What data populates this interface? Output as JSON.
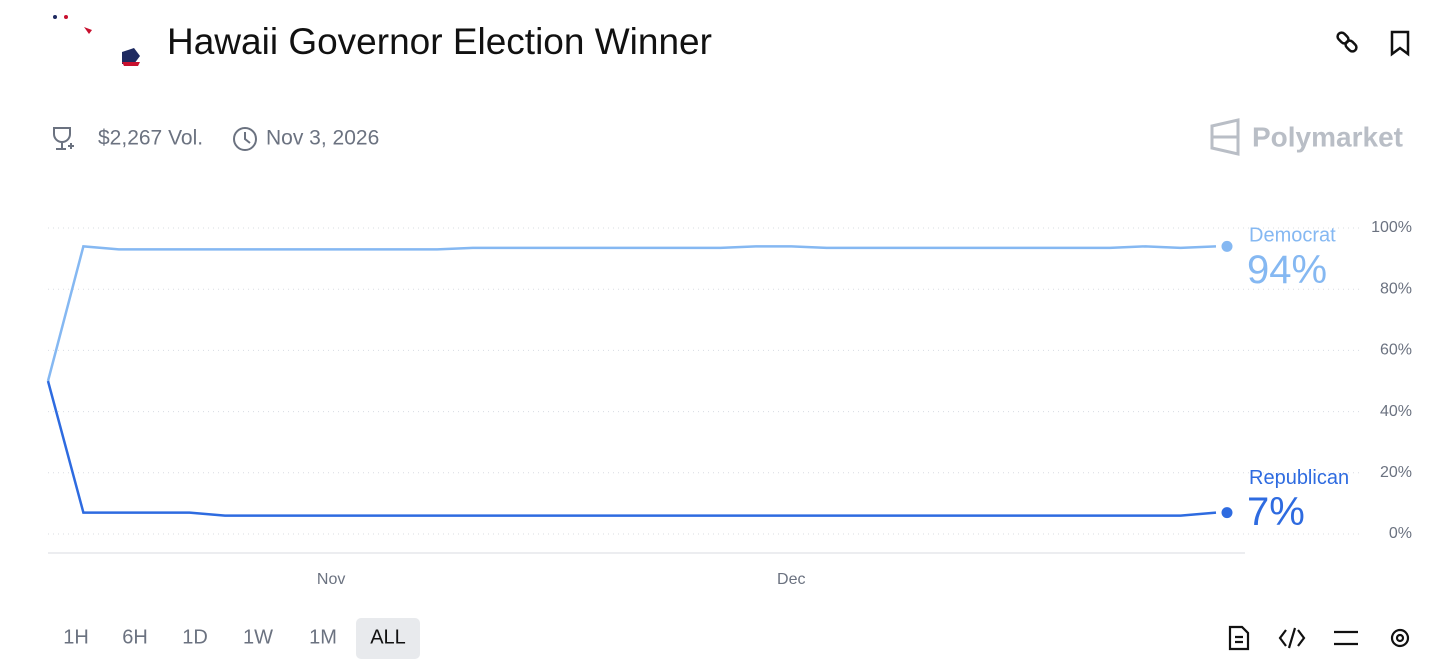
{
  "header": {
    "title": "Hawaii Governor Election Winner",
    "volume": "$2,267 Vol.",
    "end_date": "Nov 3, 2026",
    "brand": "Polymarket"
  },
  "chart_data": {
    "type": "line",
    "categories": [
      null,
      null,
      null,
      null,
      null,
      null,
      null,
      null,
      "Nov",
      null,
      null,
      null,
      null,
      null,
      null,
      null,
      null,
      null,
      null,
      null,
      null,
      "Dec",
      null,
      null,
      null,
      null,
      null,
      null,
      null,
      null,
      null,
      null,
      null,
      null
    ],
    "series": [
      {
        "name": "Democrat",
        "color": "#85b8f2",
        "values": [
          50,
          94,
          93,
          93,
          93,
          93,
          93,
          93,
          93,
          93,
          93,
          93,
          93.5,
          93.5,
          93.5,
          93.5,
          93.5,
          93.5,
          93.5,
          93.5,
          94,
          94,
          93.5,
          93.5,
          93.5,
          93.5,
          93.5,
          93.5,
          93.5,
          93.5,
          93.5,
          94,
          93.5,
          94
        ],
        "value_labels": [
          null,
          null,
          null,
          null,
          null,
          null,
          null,
          null,
          null,
          null,
          null,
          null,
          null,
          null,
          null,
          null,
          null,
          null,
          null,
          null,
          null,
          null,
          null,
          null,
          null,
          null,
          null,
          null,
          null,
          null,
          null,
          null,
          null,
          "94%"
        ]
      },
      {
        "name": "Republican",
        "color": "#2e6be0",
        "values": [
          50,
          7,
          7,
          7,
          7,
          6,
          6,
          6,
          6,
          6,
          6,
          6,
          6,
          6,
          6,
          6,
          6,
          6,
          6,
          6,
          6,
          6,
          6,
          6,
          6,
          6,
          6,
          6,
          6,
          6,
          6,
          6,
          6,
          7
        ],
        "value_labels": [
          null,
          null,
          null,
          null,
          null,
          null,
          null,
          null,
          null,
          null,
          null,
          null,
          null,
          null,
          null,
          null,
          null,
          null,
          null,
          null,
          null,
          null,
          null,
          null,
          null,
          null,
          null,
          null,
          null,
          null,
          null,
          null,
          null,
          "7%"
        ]
      }
    ],
    "ylim": [
      0,
      100
    ],
    "yticks": [
      {
        "value": 0,
        "label": "0%"
      },
      {
        "value": 20,
        "label": "20%"
      },
      {
        "value": 40,
        "label": "40%"
      },
      {
        "value": 60,
        "label": "60%"
      },
      {
        "value": 80,
        "label": "80%"
      },
      {
        "value": 100,
        "label": "100%"
      }
    ],
    "grid": true
  },
  "timeframes": [
    "1H",
    "6H",
    "1D",
    "1W",
    "1M",
    "ALL"
  ],
  "selected_timeframe": 5
}
